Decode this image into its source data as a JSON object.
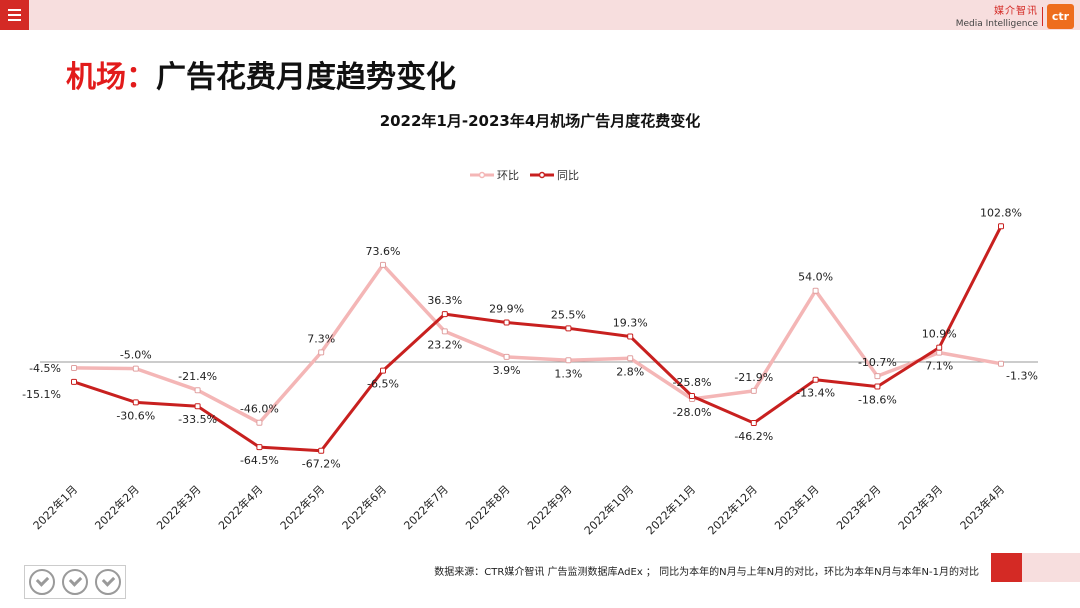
{
  "header": {
    "brand_cn": "媒介智讯",
    "brand_en": "Media Intelligence",
    "logo_text": "ctr"
  },
  "page": {
    "title_prefix": "机场：",
    "title_main": "广告花费月度趋势变化"
  },
  "footer": {
    "source": "数据来源：CTR媒介智讯 广告监测数据库AdEx ； 同比为本年的N月与上年N月的对比，环比为本年N月与本年N-1月的对比"
  },
  "colors": {
    "accent": "#d42a25",
    "mom_line": "#f4b6b6",
    "yoy_line": "#c8201f"
  },
  "chart_data": {
    "type": "line",
    "title": "2022年1月-2023年4月机场广告月度花费变化",
    "xlabel": "",
    "ylabel": "",
    "legend_position": "top-center",
    "grid": false,
    "ylim": [
      -80,
      110
    ],
    "categories": [
      "2022年1月",
      "2022年2月",
      "2022年3月",
      "2022年4月",
      "2022年5月",
      "2022年6月",
      "2022年7月",
      "2022年8月",
      "2022年9月",
      "2022年10月",
      "2022年11月",
      "2022年12月",
      "2023年1月",
      "2023年2月",
      "2023年3月",
      "2023年4月"
    ],
    "series": [
      {
        "name": "环比",
        "values": [
          -4.5,
          -5.0,
          -21.4,
          -46.0,
          7.3,
          73.6,
          23.2,
          3.9,
          1.3,
          2.8,
          -28.0,
          -21.9,
          54.0,
          -10.7,
          7.1,
          -1.3
        ],
        "labels": [
          "-4.5%",
          "-5.0%",
          "-21.4%",
          "-46.0%",
          "7.3%",
          "73.6%",
          "23.2%",
          "3.9%",
          "1.3%",
          "2.8%",
          "-28.0%",
          "-21.9%",
          "54.0%",
          "-10.7%",
          "7.1%",
          "-1.3%"
        ]
      },
      {
        "name": "同比",
        "values": [
          -15.1,
          -30.6,
          -33.5,
          -64.5,
          -67.2,
          -6.5,
          36.3,
          29.9,
          25.5,
          19.3,
          -25.8,
          -46.2,
          -13.4,
          -18.6,
          10.9,
          102.8
        ],
        "labels": [
          "-15.1%",
          "-30.6%",
          "-33.5%",
          "-64.5%",
          "-67.2%",
          "-6.5%",
          "36.3%",
          "29.9%",
          "25.5%",
          "19.3%",
          "-25.8%",
          "-46.2%",
          "-13.4%",
          "-18.6%",
          "10.9%",
          "102.8%"
        ]
      }
    ]
  }
}
